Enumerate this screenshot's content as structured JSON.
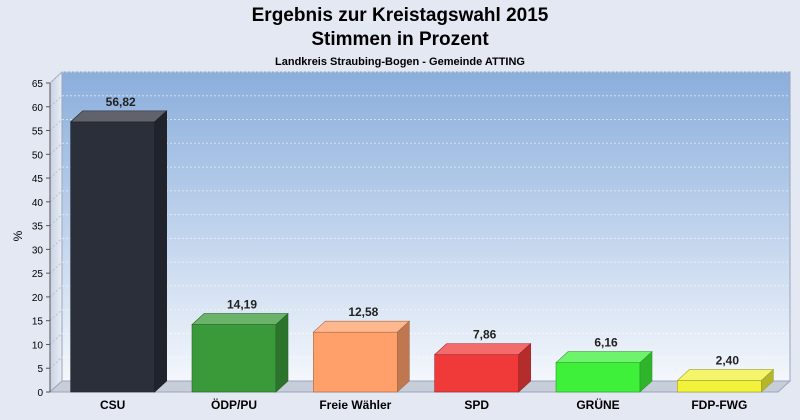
{
  "chart_data": {
    "type": "bar",
    "title_line1": "Ergebnis zur Kreistagswahl 2015",
    "title_line2": "Stimmen in Prozent",
    "subtitle": "Landkreis Straubing-Bogen - Gemeinde ATTING",
    "ylabel": "%",
    "xlabel": "",
    "ylim": [
      0,
      65
    ],
    "yticks": [
      0,
      5,
      10,
      15,
      20,
      25,
      30,
      35,
      40,
      45,
      50,
      55,
      60,
      65
    ],
    "grid": true,
    "categories": [
      "CSU",
      "ÖDP/PU",
      "Freie Wähler",
      "SPD",
      "GRÜNE",
      "FDP-FWG"
    ],
    "values": [
      56.82,
      14.19,
      12.58,
      7.86,
      6.16,
      2.4
    ],
    "value_labels": [
      "56,82",
      "14,19",
      "12,58",
      "7,86",
      "6,16",
      "2,40"
    ],
    "colors": [
      "#2b2f3a",
      "#3a9a3a",
      "#ff9f6a",
      "#f03a3a",
      "#3ef03a",
      "#f2f23a"
    ]
  }
}
